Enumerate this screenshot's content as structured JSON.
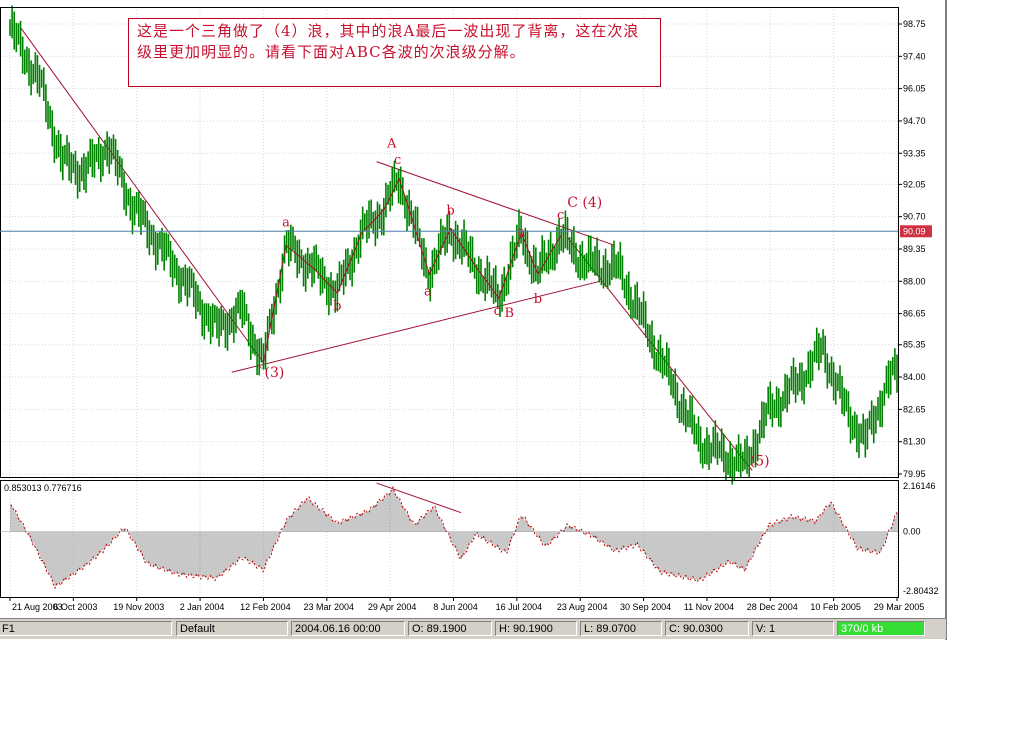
{
  "chart_data": {
    "type": "line",
    "symbol": "F1",
    "annotation": "这是一个三角做了（4）浪，其中的浪A最后一波出现了背离，这在次浪级里更加明显的。请看下面对ABC各波的次浪级分解。",
    "price_axis": {
      "ticks": [
        "98.75",
        "97.40",
        "96.05",
        "94.70",
        "93.35",
        "92.05",
        "90.70",
        "89.35",
        "88.00",
        "86.65",
        "85.35",
        "84.00",
        "82.65",
        "81.30",
        "79.95"
      ],
      "range": [
        79.95,
        98.75
      ],
      "current_price": "90.09"
    },
    "indicator_axis": {
      "ticks": [
        "2.16146",
        "0.00",
        "-2.80432"
      ],
      "range": [
        -2.80432,
        2.16146
      ],
      "values_label": "0.853013  0.776716"
    },
    "date_labels": [
      "21 Aug 2003",
      "6 Oct 2003",
      "19 Nov 2003",
      "2 Jan 2004",
      "12 Feb 2004",
      "23 Mar 2004",
      "29 Apr 2004",
      "8 Jun 2004",
      "16 Jul 2004",
      "23 Aug 2004",
      "30 Sep 2004",
      "11 Nov 2004",
      "28 Dec 2004",
      "10 Feb 2005",
      "29 Mar 2005"
    ],
    "price_path": [
      {
        "date": "2003-08-21",
        "price": 98.6
      },
      {
        "date": "2003-09-10",
        "price": 96.3
      },
      {
        "date": "2003-09-25",
        "price": 93.0
      },
      {
        "date": "2003-10-10",
        "price": 92.6
      },
      {
        "date": "2003-10-25",
        "price": 93.7
      },
      {
        "date": "2003-11-10",
        "price": 91.2
      },
      {
        "date": "2003-11-25",
        "price": 89.8
      },
      {
        "date": "2003-12-15",
        "price": 88.0
      },
      {
        "date": "2004-01-05",
        "price": 86.0
      },
      {
        "date": "2004-01-22",
        "price": 86.8
      },
      {
        "date": "2004-02-05",
        "price": 84.6
      },
      {
        "date": "2004-02-20",
        "price": 89.5
      },
      {
        "date": "2004-03-10",
        "price": 88.5
      },
      {
        "date": "2004-03-25",
        "price": 87.5
      },
      {
        "date": "2004-04-10",
        "price": 90.0
      },
      {
        "date": "2004-04-25",
        "price": 91.0
      },
      {
        "date": "2004-05-05",
        "price": 92.3
      },
      {
        "date": "2004-05-25",
        "price": 88.3
      },
      {
        "date": "2004-06-08",
        "price": 90.2
      },
      {
        "date": "2004-06-25",
        "price": 88.6
      },
      {
        "date": "2004-07-10",
        "price": 87.3
      },
      {
        "date": "2004-07-25",
        "price": 90.0
      },
      {
        "date": "2004-08-05",
        "price": 88.3
      },
      {
        "date": "2004-08-20",
        "price": 89.9
      },
      {
        "date": "2004-09-05",
        "price": 88.8
      },
      {
        "date": "2004-09-28",
        "price": 88.5
      },
      {
        "date": "2004-10-20",
        "price": 85.5
      },
      {
        "date": "2004-11-20",
        "price": 81.3
      },
      {
        "date": "2004-12-20",
        "price": 80.3
      },
      {
        "date": "2005-01-05",
        "price": 82.6
      },
      {
        "date": "2005-01-25",
        "price": 83.8
      },
      {
        "date": "2005-02-10",
        "price": 85.2
      },
      {
        "date": "2005-02-25",
        "price": 82.7
      },
      {
        "date": "2005-03-10",
        "price": 81.3
      },
      {
        "date": "2005-03-25",
        "price": 83.8
      },
      {
        "date": "2005-03-31",
        "price": 84.2
      }
    ],
    "indicator_path": [
      {
        "date": "2003-08-21",
        "value": 1.4
      },
      {
        "date": "2003-09-05",
        "value": -0.5
      },
      {
        "date": "2003-09-20",
        "value": -2.6
      },
      {
        "date": "2003-10-10",
        "value": -1.6
      },
      {
        "date": "2003-10-20",
        "value": -1.0
      },
      {
        "date": "2003-11-05",
        "value": 0.2
      },
      {
        "date": "2003-11-20",
        "value": -1.5
      },
      {
        "date": "2003-12-10",
        "value": -2.0
      },
      {
        "date": "2004-01-05",
        "value": -2.2
      },
      {
        "date": "2004-01-22",
        "value": -1.2
      },
      {
        "date": "2004-02-05",
        "value": -1.8
      },
      {
        "date": "2004-02-20",
        "value": 0.5
      },
      {
        "date": "2004-03-05",
        "value": 1.6
      },
      {
        "date": "2004-03-25",
        "value": 0.4
      },
      {
        "date": "2004-04-15",
        "value": 1.0
      },
      {
        "date": "2004-05-01",
        "value": 2.0
      },
      {
        "date": "2004-05-15",
        "value": 0.3
      },
      {
        "date": "2004-05-28",
        "value": 1.2
      },
      {
        "date": "2004-06-15",
        "value": -1.3
      },
      {
        "date": "2004-06-25",
        "value": -0.1
      },
      {
        "date": "2004-07-15",
        "value": -1.0
      },
      {
        "date": "2004-07-25",
        "value": 0.8
      },
      {
        "date": "2004-08-10",
        "value": -0.7
      },
      {
        "date": "2004-08-25",
        "value": 0.3
      },
      {
        "date": "2004-09-10",
        "value": -0.2
      },
      {
        "date": "2004-09-25",
        "value": -0.9
      },
      {
        "date": "2004-10-10",
        "value": -0.6
      },
      {
        "date": "2004-10-25",
        "value": -1.9
      },
      {
        "date": "2004-11-20",
        "value": -2.3
      },
      {
        "date": "2004-12-10",
        "value": -1.4
      },
      {
        "date": "2004-12-20",
        "value": -1.8
      },
      {
        "date": "2005-01-05",
        "value": 0.3
      },
      {
        "date": "2005-01-20",
        "value": 0.7
      },
      {
        "date": "2005-02-05",
        "value": 0.5
      },
      {
        "date": "2005-02-15",
        "value": 1.4
      },
      {
        "date": "2005-03-05",
        "value": -0.8
      },
      {
        "date": "2005-03-20",
        "value": -1.0
      },
      {
        "date": "2005-03-31",
        "value": 0.9
      }
    ],
    "wave_labels": [
      {
        "text": "`(3)",
        "date": "2004-02-10",
        "price": 84.0
      },
      {
        "text": "a",
        "date": "2004-02-20",
        "price": 90.3
      },
      {
        "text": "b",
        "date": "2004-03-25",
        "price": 86.8
      },
      {
        "text": "A",
        "date": "2004-04-30",
        "price": 93.6
      },
      {
        "text": "c",
        "date": "2004-05-04",
        "price": 92.9
      },
      {
        "text": "b",
        "date": "2004-06-08",
        "price": 90.8
      },
      {
        "text": "a",
        "date": "2004-05-24",
        "price": 87.4
      },
      {
        "text": "c",
        "date": "2004-07-09",
        "price": 86.6
      },
      {
        "text": "B",
        "date": "2004-07-17",
        "price": 86.5
      },
      {
        "text": "a",
        "date": "2004-07-25",
        "price": 89.9
      },
      {
        "text": "b",
        "date": "2004-08-05",
        "price": 87.1
      },
      {
        "text": "c",
        "date": "2004-08-20",
        "price": 90.6
      },
      {
        "text": "C (4)",
        "date": "2004-09-05",
        "price": 91.1
      },
      {
        "text": "(5)",
        "date": "2004-12-30",
        "price": 80.3
      }
    ],
    "trend_lines": [
      {
        "from": {
          "date": "2003-08-28",
          "price": 98.6
        },
        "to": {
          "date": "2004-02-05",
          "price": 84.6
        }
      },
      {
        "from": {
          "date": "2004-01-15",
          "price": 84.2
        },
        "to": {
          "date": "2004-09-15",
          "price": 88.0
        }
      },
      {
        "from": {
          "date": "2004-04-20",
          "price": 93.0
        },
        "to": {
          "date": "2004-09-25",
          "price": 89.5
        }
      },
      {
        "from": {
          "date": "2004-08-25",
          "price": 89.8
        },
        "to": {
          "date": "2004-12-25",
          "price": 80.1
        }
      }
    ],
    "indicator_divergence_line": {
      "from": {
        "date": "2004-04-20",
        "value": 2.3
      },
      "to": {
        "date": "2004-06-15",
        "value": 0.9
      }
    }
  },
  "status_bar": {
    "symbol": "F1",
    "profile": "Default",
    "datetime": "2004.06.16 00:00",
    "open": "O: 89.1900",
    "high": "H: 90.1900",
    "low": "L: 89.0700",
    "close": "C: 90.0300",
    "volume": "V: 1",
    "memory": "370/0 kb"
  },
  "colors": {
    "candles": "#008000",
    "wave_lines": "#a01030",
    "label_text": "#c8102e",
    "indicator_line": "#c00000",
    "histogram": "#909090",
    "grid": "#cfd8e6",
    "current_price_bg": "#d03040"
  }
}
